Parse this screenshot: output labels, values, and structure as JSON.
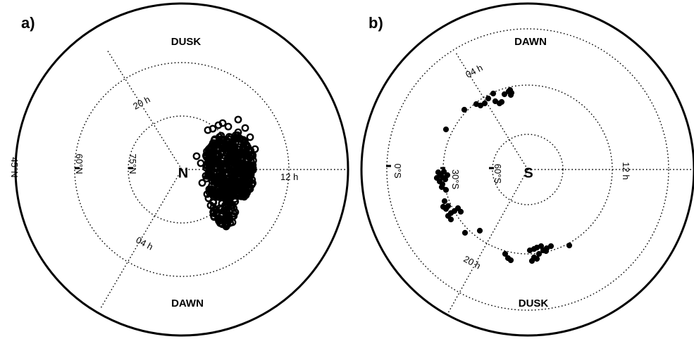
{
  "panels": [
    {
      "label": "a)",
      "pole": "N",
      "top_label": "DUSK",
      "bottom_label": "DAWN",
      "lat_labels": [
        "75°N",
        "60°N",
        "45°N"
      ],
      "time_labels": [
        "20 h",
        "04 h",
        "12 h"
      ]
    },
    {
      "label": "b)",
      "pole": "S",
      "top_label": "DAWN",
      "bottom_label": "DUSK",
      "lat_labels": [
        "60°S",
        "30°S",
        "0°S"
      ],
      "time_labels": [
        "04 h",
        "20 h",
        "12 h"
      ]
    }
  ],
  "chart_data": [
    {
      "type": "scatter",
      "title": "",
      "marker": "open circle",
      "note_points_region": "dense cluster on dayside near 12 h, about 75°N to 60°N"
    },
    {
      "type": "scatter",
      "title": "",
      "marker": "filled circle",
      "note_points_region": "arc of points near 30°S from 04 h through 00 h to 20 h"
    }
  ]
}
